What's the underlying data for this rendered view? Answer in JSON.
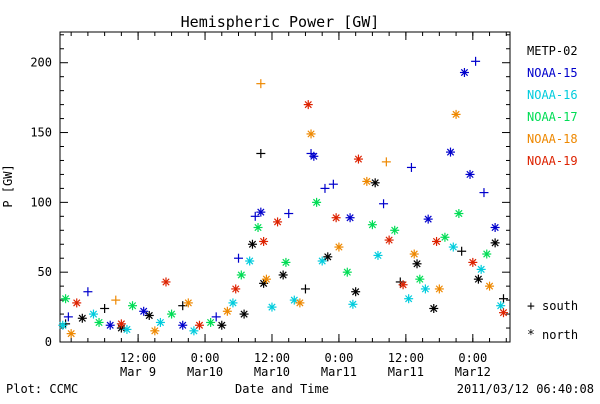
{
  "chart_data": {
    "type": "scatter",
    "title": "Hemispheric Power [GW]",
    "xlabel": "Date and Time",
    "ylabel": "P [GW]",
    "footer_left": "Plot: CCMC",
    "footer_right": "2011/03/12 06:40:08",
    "xlim": [
      "2011-03-08T22:00",
      "2011-03-12T06:40"
    ],
    "ylim": [
      0,
      222
    ],
    "grid": false,
    "yticks": [
      0,
      50,
      100,
      150,
      200
    ],
    "xticks": [
      {
        "time": "2011-03-09T12:00",
        "line1": "12:00",
        "line2": "Mar 9"
      },
      {
        "time": "2011-03-10T00:00",
        "line1": "0:00",
        "line2": "Mar10"
      },
      {
        "time": "2011-03-10T12:00",
        "line1": "12:00",
        "line2": "Mar10"
      },
      {
        "time": "2011-03-11T00:00",
        "line1": "0:00",
        "line2": "Mar11"
      },
      {
        "time": "2011-03-11T12:00",
        "line1": "12:00",
        "line2": "Mar11"
      },
      {
        "time": "2011-03-12T00:00",
        "line1": "0:00",
        "line2": "Mar12"
      }
    ],
    "legend_position": "right",
    "series": [
      {
        "name": "METP-02",
        "color": "#000000",
        "points": [
          {
            "t": "2011-03-08T23:00",
            "y": 13,
            "hemi": "south"
          },
          {
            "t": "2011-03-09T02:00",
            "y": 17,
            "hemi": "north"
          },
          {
            "t": "2011-03-09T06:00",
            "y": 24,
            "hemi": "south"
          },
          {
            "t": "2011-03-09T09:00",
            "y": 10,
            "hemi": "north"
          },
          {
            "t": "2011-03-09T14:00",
            "y": 19,
            "hemi": "north"
          },
          {
            "t": "2011-03-09T20:00",
            "y": 26,
            "hemi": "south"
          },
          {
            "t": "2011-03-10T03:00",
            "y": 12,
            "hemi": "north"
          },
          {
            "t": "2011-03-10T07:00",
            "y": 20,
            "hemi": "north"
          },
          {
            "t": "2011-03-10T10:00",
            "y": 135,
            "hemi": "south"
          },
          {
            "t": "2011-03-10T08:30",
            "y": 70,
            "hemi": "north"
          },
          {
            "t": "2011-03-10T10:30",
            "y": 42,
            "hemi": "north"
          },
          {
            "t": "2011-03-10T14:00",
            "y": 48,
            "hemi": "north"
          },
          {
            "t": "2011-03-10T18:00",
            "y": 38,
            "hemi": "south"
          },
          {
            "t": "2011-03-10T22:00",
            "y": 61,
            "hemi": "north"
          },
          {
            "t": "2011-03-11T03:00",
            "y": 36,
            "hemi": "north"
          },
          {
            "t": "2011-03-11T06:30",
            "y": 114,
            "hemi": "north"
          },
          {
            "t": "2011-03-11T11:00",
            "y": 43,
            "hemi": "south"
          },
          {
            "t": "2011-03-11T14:00",
            "y": 56,
            "hemi": "north"
          },
          {
            "t": "2011-03-11T17:00",
            "y": 24,
            "hemi": "north"
          },
          {
            "t": "2011-03-11T22:00",
            "y": 65,
            "hemi": "south"
          },
          {
            "t": "2011-03-12T01:00",
            "y": 45,
            "hemi": "north"
          },
          {
            "t": "2011-03-12T04:00",
            "y": 71,
            "hemi": "north"
          },
          {
            "t": "2011-03-12T05:30",
            "y": 31,
            "hemi": "south"
          }
        ]
      },
      {
        "name": "NOAA-15",
        "color": "#0000cc",
        "points": [
          {
            "t": "2011-03-08T23:30",
            "y": 18,
            "hemi": "south"
          },
          {
            "t": "2011-03-09T03:00",
            "y": 36,
            "hemi": "south"
          },
          {
            "t": "2011-03-09T07:00",
            "y": 12,
            "hemi": "north"
          },
          {
            "t": "2011-03-09T13:00",
            "y": 22,
            "hemi": "north"
          },
          {
            "t": "2011-03-09T20:00",
            "y": 12,
            "hemi": "north"
          },
          {
            "t": "2011-03-10T02:00",
            "y": 18,
            "hemi": "south"
          },
          {
            "t": "2011-03-10T06:00",
            "y": 60,
            "hemi": "south"
          },
          {
            "t": "2011-03-10T09:00",
            "y": 90,
            "hemi": "south"
          },
          {
            "t": "2011-03-10T10:00",
            "y": 93,
            "hemi": "north"
          },
          {
            "t": "2011-03-10T15:00",
            "y": 92,
            "hemi": "south"
          },
          {
            "t": "2011-03-10T19:00",
            "y": 135,
            "hemi": "south"
          },
          {
            "t": "2011-03-10T19:30",
            "y": 133,
            "hemi": "north"
          },
          {
            "t": "2011-03-10T21:30",
            "y": 110,
            "hemi": "south"
          },
          {
            "t": "2011-03-10T23:00",
            "y": 113,
            "hemi": "south"
          },
          {
            "t": "2011-03-11T02:00",
            "y": 89,
            "hemi": "north"
          },
          {
            "t": "2011-03-11T08:00",
            "y": 99,
            "hemi": "south"
          },
          {
            "t": "2011-03-11T13:00",
            "y": 125,
            "hemi": "south"
          },
          {
            "t": "2011-03-11T16:00",
            "y": 88,
            "hemi": "north"
          },
          {
            "t": "2011-03-11T20:00",
            "y": 136,
            "hemi": "north"
          },
          {
            "t": "2011-03-11T22:30",
            "y": 193,
            "hemi": "north"
          },
          {
            "t": "2011-03-11T23:30",
            "y": 120,
            "hemi": "north"
          },
          {
            "t": "2011-03-12T00:30",
            "y": 201,
            "hemi": "south"
          },
          {
            "t": "2011-03-12T02:00",
            "y": 107,
            "hemi": "south"
          },
          {
            "t": "2011-03-12T04:00",
            "y": 82,
            "hemi": "north"
          }
        ]
      },
      {
        "name": "NOAA-16",
        "color": "#00ccdd",
        "points": [
          {
            "t": "2011-03-08T22:30",
            "y": 12,
            "hemi": "north"
          },
          {
            "t": "2011-03-09T04:00",
            "y": 20,
            "hemi": "north"
          },
          {
            "t": "2011-03-09T10:00",
            "y": 9,
            "hemi": "north"
          },
          {
            "t": "2011-03-09T16:00",
            "y": 14,
            "hemi": "north"
          },
          {
            "t": "2011-03-09T22:00",
            "y": 8,
            "hemi": "north"
          },
          {
            "t": "2011-03-10T05:00",
            "y": 28,
            "hemi": "north"
          },
          {
            "t": "2011-03-10T08:00",
            "y": 58,
            "hemi": "north"
          },
          {
            "t": "2011-03-10T12:00",
            "y": 25,
            "hemi": "north"
          },
          {
            "t": "2011-03-10T16:00",
            "y": 30,
            "hemi": "north"
          },
          {
            "t": "2011-03-10T21:00",
            "y": 58,
            "hemi": "north"
          },
          {
            "t": "2011-03-11T02:30",
            "y": 27,
            "hemi": "north"
          },
          {
            "t": "2011-03-11T07:00",
            "y": 62,
            "hemi": "north"
          },
          {
            "t": "2011-03-11T12:30",
            "y": 31,
            "hemi": "north"
          },
          {
            "t": "2011-03-11T15:30",
            "y": 38,
            "hemi": "north"
          },
          {
            "t": "2011-03-11T20:30",
            "y": 68,
            "hemi": "north"
          },
          {
            "t": "2011-03-12T01:30",
            "y": 52,
            "hemi": "north"
          },
          {
            "t": "2011-03-12T05:00",
            "y": 26,
            "hemi": "north"
          }
        ]
      },
      {
        "name": "NOAA-17",
        "color": "#00dd55",
        "points": [
          {
            "t": "2011-03-08T23:00",
            "y": 31,
            "hemi": "north"
          },
          {
            "t": "2011-03-09T05:00",
            "y": 14,
            "hemi": "north"
          },
          {
            "t": "2011-03-09T11:00",
            "y": 26,
            "hemi": "north"
          },
          {
            "t": "2011-03-09T18:00",
            "y": 20,
            "hemi": "north"
          },
          {
            "t": "2011-03-10T01:00",
            "y": 14,
            "hemi": "north"
          },
          {
            "t": "2011-03-10T06:30",
            "y": 48,
            "hemi": "north"
          },
          {
            "t": "2011-03-10T09:30",
            "y": 82,
            "hemi": "north"
          },
          {
            "t": "2011-03-10T14:30",
            "y": 57,
            "hemi": "north"
          },
          {
            "t": "2011-03-10T20:00",
            "y": 100,
            "hemi": "north"
          },
          {
            "t": "2011-03-11T01:30",
            "y": 50,
            "hemi": "north"
          },
          {
            "t": "2011-03-11T06:00",
            "y": 84,
            "hemi": "north"
          },
          {
            "t": "2011-03-11T10:00",
            "y": 80,
            "hemi": "north"
          },
          {
            "t": "2011-03-11T14:30",
            "y": 45,
            "hemi": "north"
          },
          {
            "t": "2011-03-11T19:00",
            "y": 75,
            "hemi": "north"
          },
          {
            "t": "2011-03-11T21:30",
            "y": 92,
            "hemi": "north"
          },
          {
            "t": "2011-03-12T02:30",
            "y": 63,
            "hemi": "north"
          }
        ]
      },
      {
        "name": "NOAA-18",
        "color": "#ee8800",
        "points": [
          {
            "t": "2011-03-09T00:00",
            "y": 6,
            "hemi": "north"
          },
          {
            "t": "2011-03-09T08:00",
            "y": 30,
            "hemi": "south"
          },
          {
            "t": "2011-03-09T15:00",
            "y": 8,
            "hemi": "north"
          },
          {
            "t": "2011-03-09T21:00",
            "y": 28,
            "hemi": "north"
          },
          {
            "t": "2011-03-10T04:00",
            "y": 22,
            "hemi": "north"
          },
          {
            "t": "2011-03-10T10:00",
            "y": 185,
            "hemi": "south"
          },
          {
            "t": "2011-03-10T11:00",
            "y": 45,
            "hemi": "north"
          },
          {
            "t": "2011-03-10T17:00",
            "y": 28,
            "hemi": "north"
          },
          {
            "t": "2011-03-10T19:00",
            "y": 149,
            "hemi": "north"
          },
          {
            "t": "2011-03-11T00:00",
            "y": 68,
            "hemi": "north"
          },
          {
            "t": "2011-03-11T05:00",
            "y": 115,
            "hemi": "north"
          },
          {
            "t": "2011-03-11T08:30",
            "y": 129,
            "hemi": "south"
          },
          {
            "t": "2011-03-11T13:30",
            "y": 63,
            "hemi": "north"
          },
          {
            "t": "2011-03-11T18:00",
            "y": 38,
            "hemi": "north"
          },
          {
            "t": "2011-03-11T21:00",
            "y": 163,
            "hemi": "north"
          },
          {
            "t": "2011-03-12T03:00",
            "y": 40,
            "hemi": "north"
          }
        ]
      },
      {
        "name": "NOAA-19",
        "color": "#dd2200",
        "points": [
          {
            "t": "2011-03-09T01:00",
            "y": 28,
            "hemi": "north"
          },
          {
            "t": "2011-03-09T09:00",
            "y": 13,
            "hemi": "north"
          },
          {
            "t": "2011-03-09T17:00",
            "y": 43,
            "hemi": "north"
          },
          {
            "t": "2011-03-09T23:00",
            "y": 12,
            "hemi": "north"
          },
          {
            "t": "2011-03-10T05:30",
            "y": 38,
            "hemi": "north"
          },
          {
            "t": "2011-03-10T10:30",
            "y": 72,
            "hemi": "north"
          },
          {
            "t": "2011-03-10T13:00",
            "y": 86,
            "hemi": "north"
          },
          {
            "t": "2011-03-10T18:30",
            "y": 170,
            "hemi": "north"
          },
          {
            "t": "2011-03-10T23:30",
            "y": 89,
            "hemi": "north"
          },
          {
            "t": "2011-03-11T03:30",
            "y": 131,
            "hemi": "north"
          },
          {
            "t": "2011-03-11T09:00",
            "y": 73,
            "hemi": "north"
          },
          {
            "t": "2011-03-11T11:30",
            "y": 41,
            "hemi": "north"
          },
          {
            "t": "2011-03-11T17:30",
            "y": 72,
            "hemi": "north"
          },
          {
            "t": "2011-03-12T00:00",
            "y": 57,
            "hemi": "north"
          },
          {
            "t": "2011-03-12T05:30",
            "y": 21,
            "hemi": "north"
          }
        ]
      }
    ],
    "marker_legend": [
      {
        "symbol": "+",
        "label": "south"
      },
      {
        "symbol": "*",
        "label": "north"
      }
    ]
  }
}
